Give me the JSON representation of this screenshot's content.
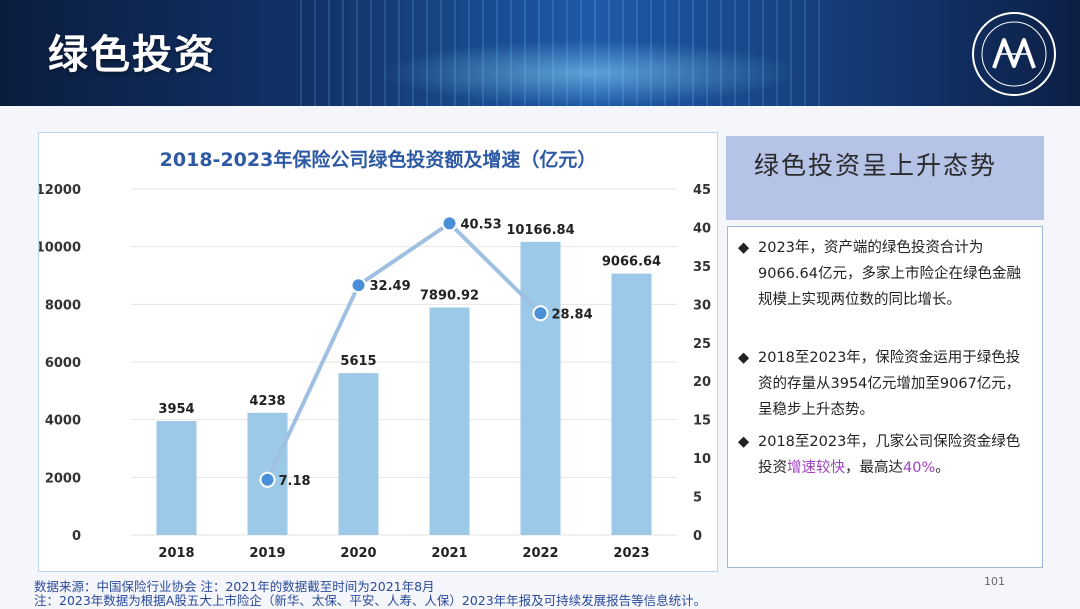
{
  "header": {
    "title": "绿色投资"
  },
  "colors": {
    "bar": "#9cc9e8",
    "line": "#9fc0e2",
    "marker": "#4a90d9",
    "title": "#2e5aa4"
  },
  "chart_data": {
    "type": "bar",
    "title": "2018-2023年保险公司绿色投资额及增速（亿元）",
    "categories": [
      "2018",
      "2019",
      "2020",
      "2021",
      "2022",
      "2023"
    ],
    "series": [
      {
        "values": [
          3954,
          4238,
          5615,
          7890.92,
          10166.84,
          9066.64
        ]
      },
      {
        "values": [
          null,
          7.18,
          32.49,
          40.53,
          28.84,
          null
        ]
      }
    ],
    "bar_labels": [
      "3954",
      "4238",
      "5615",
      "7890.92",
      "10166.84",
      "9066.64"
    ],
    "line_labels": [
      "",
      "7.18",
      "32.49",
      "40.53",
      "28.84",
      ""
    ],
    "ylim": [
      0,
      12000
    ],
    "y_ticks": [
      "0",
      "2000",
      "4000",
      "6000",
      "8000",
      "10000",
      "12000"
    ],
    "y2lim": [
      0,
      45
    ],
    "y2_ticks": [
      "0",
      "5",
      "10",
      "15",
      "20",
      "25",
      "30",
      "35",
      "40",
      "45"
    ],
    "grid": true
  },
  "side": {
    "heading": "绿色投资呈上升态势",
    "bullets": [
      {
        "marker": "◆",
        "text": "2023年，资产端的绿色投资合计为9066.64亿元，多家上市险企在绿色金融规模上实现两位数的同比增长。"
      },
      {
        "marker": "◆",
        "text": "2018至2023年，保险资金运用于绿色投资的存量从3954亿元增加至9067亿元，呈稳步上升态势。"
      },
      {
        "marker": "◆",
        "text_a": "2018至2023年，几家公司保险资金绿色投资",
        "highlight1": "增速较快",
        "text_b": "，最高达",
        "highlight2": "40%",
        "text_c": "。"
      }
    ]
  },
  "footer": {
    "source": "数据来源：中国保险行业协会  注：2021年的数据截至时间为2021年8月",
    "note": "注：2023年数据为根据A股五大上市险企（新华、太保、平安、人寿、人保）2023年年报及可持续发展报告等信息统计。",
    "page": "101"
  }
}
